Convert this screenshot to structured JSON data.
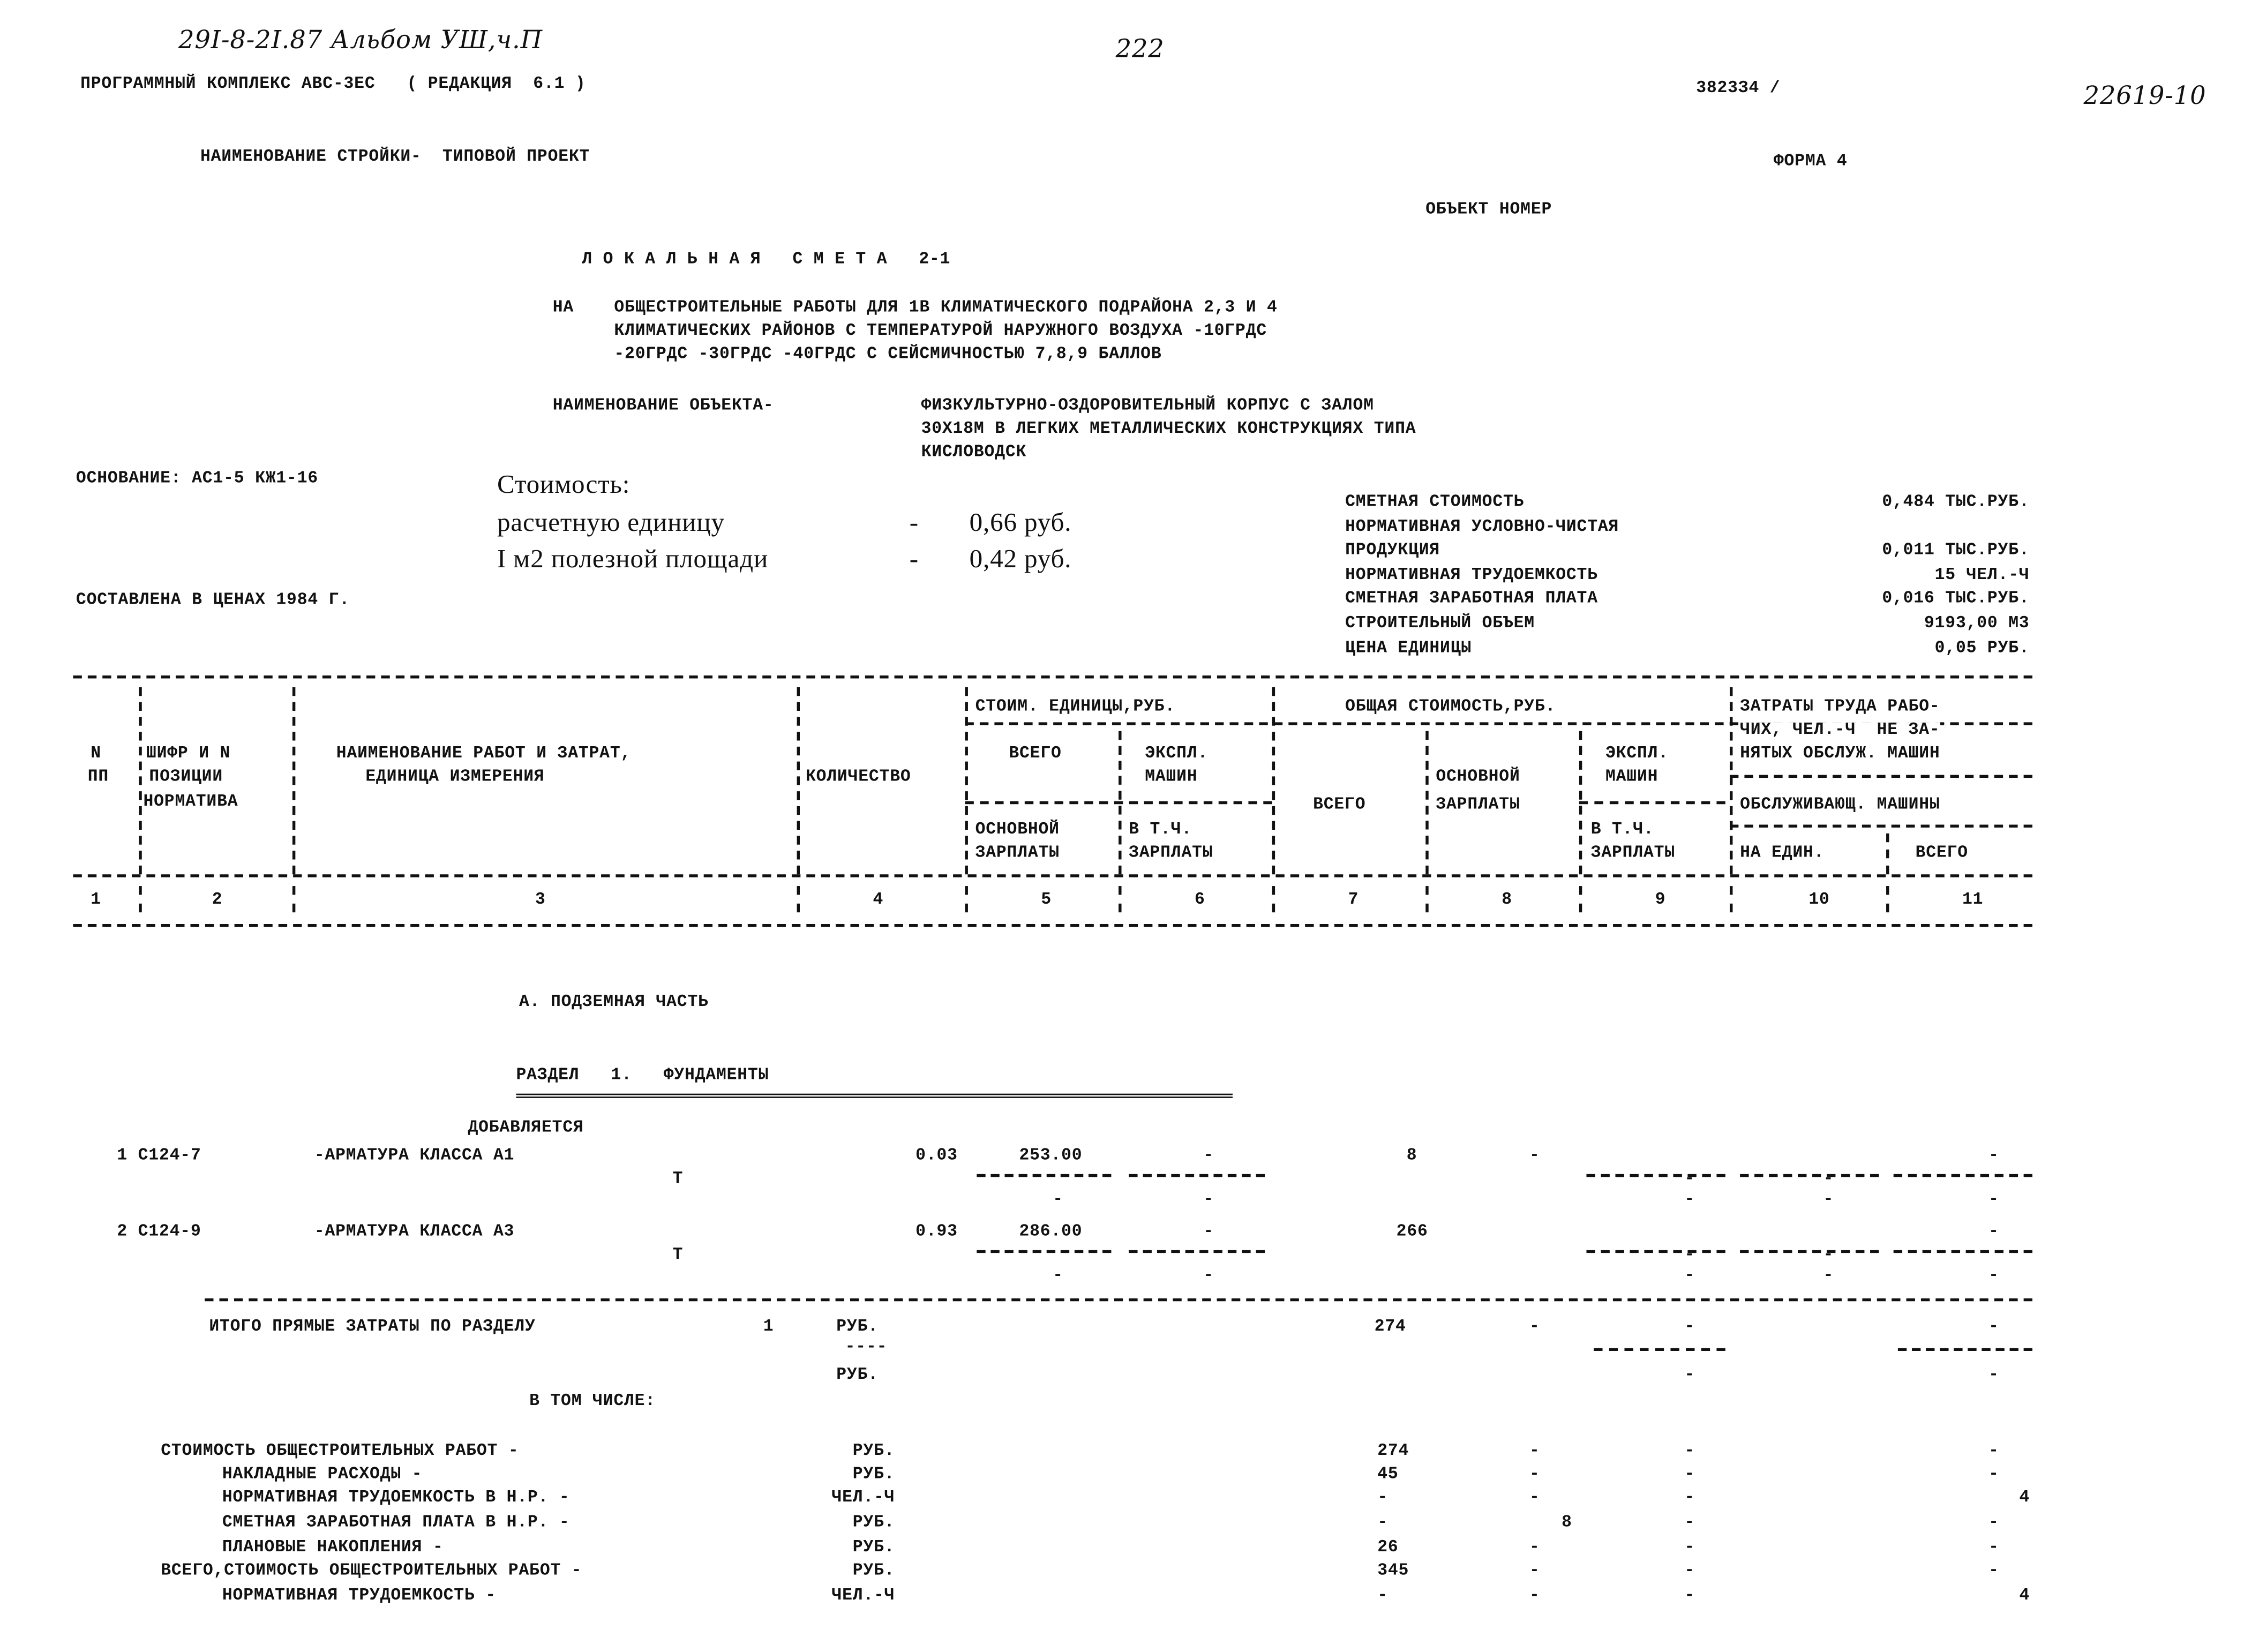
{
  "header": {
    "album_ref": "29I-8-2I.87 Альбом УШ,ч.П",
    "page_number": "222",
    "program": "ПРОГРАММНЫЙ КОМПЛЕКС АВС-3ЕС   ( РЕДАКЦИЯ  6.1 )",
    "code": "3823З4 /",
    "inventory_number": "22619-10",
    "construction_name": "НАИМЕНОВАНИЕ СТРОЙКИ-  ТИПОВОЙ ПРОЕКТ",
    "form": "ФОРМА 4",
    "object_number": "ОБЪЕКТ НОМЕР"
  },
  "title": "Л О К А Л Ь Н А Я   С М Е Т А   2-1",
  "purpose": {
    "prefix": "НА",
    "lines": [
      "ОБЩЕСТРОИТЕЛЬНЫЕ РАБОТЫ ДЛЯ 1В КЛИМАТИЧЕСКОГО ПОДРАЙОНА 2,3 И 4",
      "КЛИМАТИЧЕСКИХ РАЙОНОВ С ТЕМПЕРАТУРОЙ НАРУЖНОГО ВОЗДУХА -10ГРДС",
      "-20ГРДС -30ГРДС -40ГРДС С СЕЙСМИЧНОСТЬЮ 7,8,9 БАЛЛОВ"
    ]
  },
  "object": {
    "label": "НАИМЕНОВАНИЕ ОБЪЕКТА-",
    "lines": [
      "ФИЗКУЛЬТУРНО-ОЗДОРОВИТЕЛЬНЫЙ КОРПУС С ЗАЛОМ",
      "30Х18М В ЛЕГКИХ МЕТАЛЛИЧЕСКИХ КОНСТРУКЦИЯХ ТИПА",
      "КИСЛОВОДСК"
    ]
  },
  "basis": "ОСНОВАНИЕ: АС1-5 КЖ1-16",
  "prices_year": "СОСТАВЛЕНА В ЦЕНАХ 1984 Г.",
  "cost_stamp": {
    "title": "Стоимость:",
    "rows": [
      {
        "label": "расчетную единицу",
        "dash": "-",
        "value": "0,66 руб."
      },
      {
        "label": "I м2 полезной площади",
        "dash": "-",
        "value": "0,42 руб."
      }
    ]
  },
  "summary": [
    {
      "label": "СМЕТНАЯ СТОИМОСТЬ",
      "value": "0,484 ТЫС.РУБ."
    },
    {
      "label": "НОРМАТИВНАЯ УСЛОВНО-ЧИСТАЯ",
      "value": ""
    },
    {
      "label": "ПРОДУКЦИЯ",
      "value": "0,011 ТЫС.РУБ."
    },
    {
      "label": "НОРМАТИВНАЯ ТРУДОЕМКОСТЬ",
      "value": "15 ЧЕЛ.-Ч"
    },
    {
      "label": "СМЕТНАЯ ЗАРАБОТНАЯ ПЛАТА",
      "value": "0,016 ТЫС.РУБ."
    },
    {
      "label": "СТРОИТЕЛЬНЫЙ ОБЪЕМ",
      "value": "9193,00 М3"
    },
    {
      "label": "ЦЕНА ЕДИНИЦЫ",
      "value": "0,05 РУБ."
    }
  ],
  "table_header": {
    "n": "N",
    "pp": "ПП",
    "code1": "ШИФР И N",
    "code2": "ПОЗИЦИИ",
    "code3": "НОРМАТИВА",
    "name1": "НАИМЕНОВАНИЕ РАБОТ И ЗАТРАТ,",
    "name2": "ЕДИНИЦА ИЗМЕРЕНИЯ",
    "qty": "КОЛИЧЕСТВО",
    "unit_cost": "СТОИМ. ЕДИНИЦЫ,РУБ.",
    "uc_total": "ВСЕГО",
    "uc_mach1": "ЭКСПЛ.",
    "uc_mach2": "МАШИН",
    "uc_wage1": "ОСНОВНОЙ",
    "uc_wage2": "ЗАРПЛАТЫ",
    "uc_incl1": "В Т.Ч.",
    "uc_incl2": "ЗАРПЛАТЫ",
    "total_cost": "ОБЩАЯ СТОИМОСТЬ,РУБ.",
    "tc_total": "ВСЕГО",
    "tc_wage1": "ОСНОВНОЙ",
    "tc_wage2": "ЗАРПЛАТЫ",
    "tc_mach1": "ЭКСПЛ.",
    "tc_mach2": "МАШИН",
    "tc_incl1": "В Т.Ч.",
    "tc_incl2": "ЗАРПЛАТЫ",
    "labor1": "ЗАТРАТЫ ТРУДА РАБО-",
    "labor2": "ЧИХ, ЧЕЛ.-Ч  НЕ ЗА-",
    "labor3": "НЯТЫХ ОБСЛУЖ. МАШИН",
    "labor4": "ОБСЛУЖИВАЮЩ. МАШИНЫ",
    "labor_unit": "НА ЕДИН.",
    "labor_total": "ВСЕГО",
    "col_numbers": [
      "1",
      "2",
      "3",
      "4",
      "5",
      "6",
      "7",
      "8",
      "9",
      "10",
      "11"
    ]
  },
  "part": "А. ПОДЗЕМНАЯ ЧАСТЬ",
  "section": "РАЗДЕЛ   1.   ФУНДАМЕНТЫ",
  "added": "ДОБАВЛЯЕТСЯ",
  "items": [
    {
      "no": "1 С124-7",
      "name": "-АРМАТУРА КЛАССА А1",
      "unit": "Т",
      "qty": "0.03",
      "price": "253.00",
      "mach": "-",
      "total": "8",
      "wage": "-",
      "c9": "-",
      "c10": "-",
      "c11": "-"
    },
    {
      "no": "2 С124-9",
      "name": "-АРМАТУРА КЛАССА А3",
      "unit": "Т",
      "qty": "0.93",
      "price": "286.00",
      "mach": "-",
      "total": "266",
      "wage": "",
      "c9": "-",
      "c10": "-",
      "c11": "-"
    }
  ],
  "dash": "-",
  "section_total": {
    "label": "ИТОГО ПРЯМЫЕ ЗАТРАТЫ ПО РАЗДЕЛУ",
    "section": "1",
    "unit": "РУБ.",
    "unit2": "----",
    "unit3": "РУБ.",
    "total": "274",
    "wage": "-"
  },
  "including": "В ТОМ ЧИСЛЕ:",
  "breakdown": [
    {
      "label": "СТОИМОСТЬ ОБЩЕСТРОИТЕЛЬНЫХ РАБОТ -",
      "unit": "РУБ.",
      "total": "274",
      "c8": "-",
      "c9": "-",
      "c11": "-"
    },
    {
      "label": "НАКЛАДНЫЕ РАСХОДЫ -",
      "unit": "РУБ.",
      "total": "45",
      "c8": "-",
      "c9": "-",
      "c11": "-"
    },
    {
      "label": "НОРМАТИВНАЯ ТРУДОЕМКОСТЬ В Н.Р. -",
      "unit": "ЧЕЛ.-Ч",
      "total": "-",
      "c8": "-",
      "c9": "-",
      "c11": "4"
    },
    {
      "label": "СМЕТНАЯ ЗАРАБОТНАЯ ПЛАТА В Н.Р. -",
      "unit": "РУБ.",
      "total": "-",
      "c8": "8",
      "c9": "-",
      "c11": "-"
    },
    {
      "label": "ПЛАНОВЫЕ НАКОПЛЕНИЯ -",
      "unit": "РУБ.",
      "total": "26",
      "c8": "-",
      "c9": "-",
      "c11": "-"
    },
    {
      "label": "ВСЕГО,СТОИМОСТЬ ОБЩЕСТРОИТЕЛЬНЫХ РАБОТ -",
      "unit": "РУБ.",
      "total": "345",
      "c8": "-",
      "c9": "-",
      "c11": "-"
    },
    {
      "label": "НОРМАТИВНАЯ ТРУДОЕМКОСТЬ -",
      "unit": "ЧЕЛ.-Ч",
      "total": "-",
      "c8": "-",
      "c9": "-",
      "c11": "4"
    }
  ]
}
